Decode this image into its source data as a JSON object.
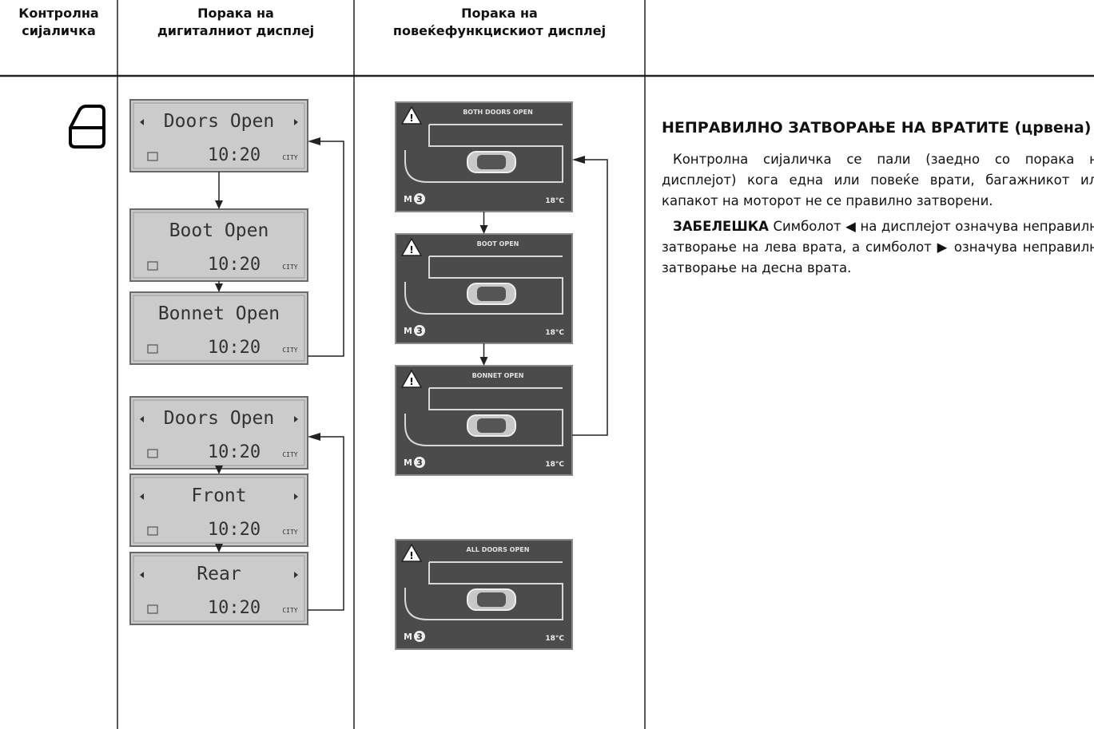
{
  "header": {
    "columns": [
      "Контролна\nсијаличка",
      "Порака на\nдигиталниот дисплеј",
      "Порака на\nповеќефункцискиот дисплеј"
    ]
  },
  "digital_display": {
    "messages": [
      "Doors Open",
      "Boot Open",
      "Bonnet Open",
      "Doors Open",
      "Front",
      "Rear"
    ],
    "time": "10:20",
    "mode": "CITY"
  },
  "multifunction_display": {
    "messages": [
      "BOTH DOORS OPEN",
      "BOOT OPEN",
      "BONNET OPEN",
      "ALL DOORS OPEN"
    ],
    "menu": "M",
    "menu_number": "3",
    "temperature": "18°C"
  },
  "description": {
    "title": "НЕПРАВИЛНО ЗАТВОРАЊЕ НА ВРАТИТЕ (црвена)",
    "body": "Контролна сијаличка се пали (заедно со порака на дисплејот) кога една или повеќе врати, багажникот или капакот на моторот не се правилно затворени.",
    "note_label": "ЗАБЕЛЕШКА",
    "note_text": "Симболот ◀ на дисплејот означува неправилно затворање на лева врата, а симболот ▶ означува неправилно затворање на десна врата."
  }
}
